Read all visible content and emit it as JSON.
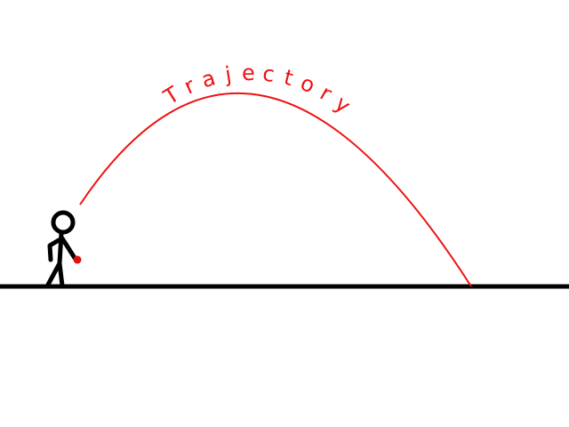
{
  "title": "Trajectory",
  "colors": {
    "trajectory": "#ee1111",
    "ground": "#000000",
    "figure": "#000000",
    "ball": "#dd1111",
    "background": "#ffffff"
  },
  "icons": {
    "figure": "stick-figure-icon",
    "ball": "ball-icon"
  }
}
